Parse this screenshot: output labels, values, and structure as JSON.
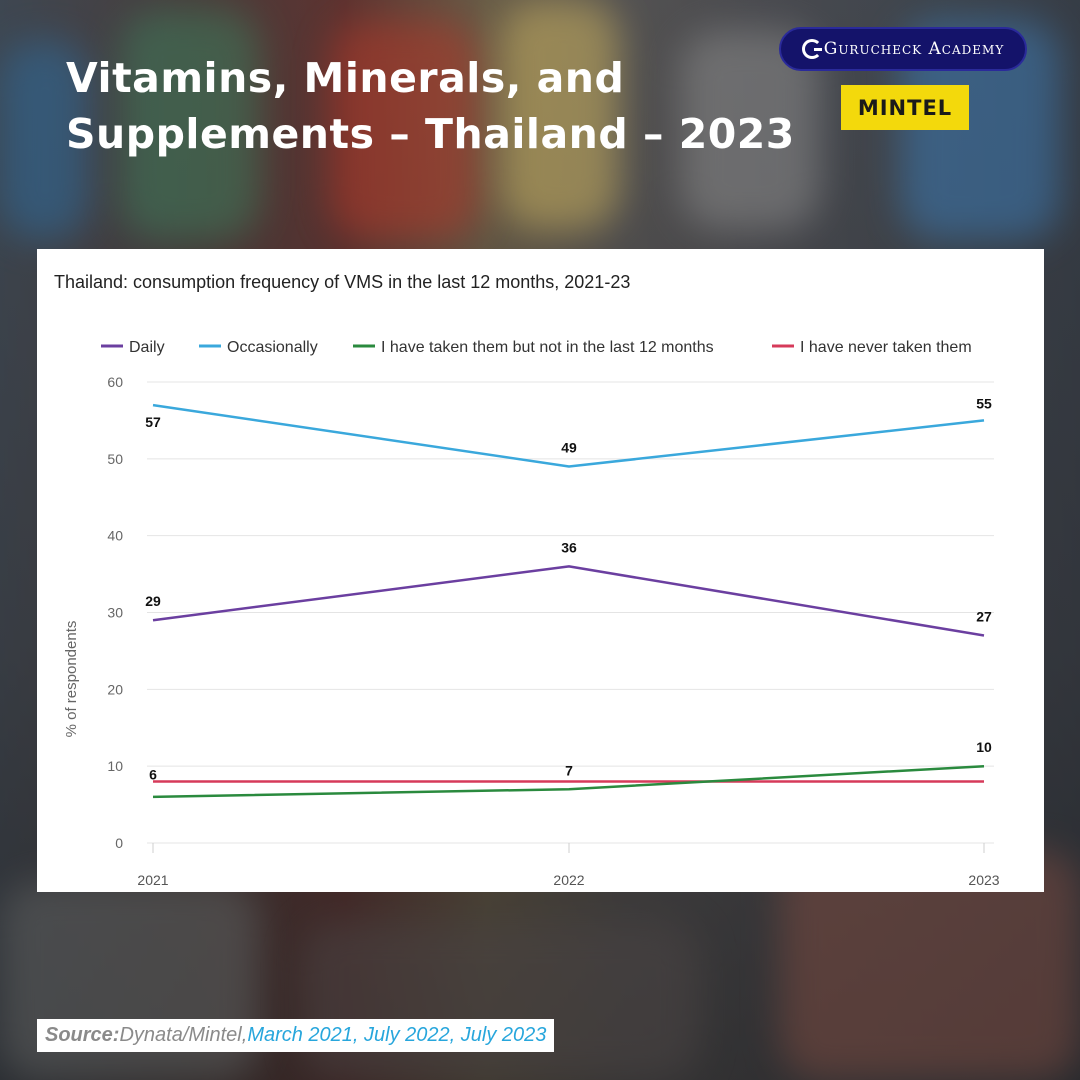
{
  "header": {
    "title_line1": "Vitamins, Minerals, and",
    "title_line2": "Supplements – Thailand – 2023"
  },
  "brand": {
    "academy_label": "Gurucheck Academy",
    "partner_label": "MINTEL"
  },
  "source": {
    "label": "Source:",
    "org": " Dynata/Mintel, ",
    "dates": "March 2021, July 2022, July 2023"
  },
  "chart_data": {
    "type": "line",
    "title": "Thailand: consumption frequency of VMS in the last 12 months, 2021-23",
    "xlabel": "",
    "ylabel": "% of respondents",
    "categories": [
      "2021",
      "2022",
      "2023"
    ],
    "ylim": [
      0,
      60
    ],
    "yticks": [
      0,
      10,
      20,
      30,
      40,
      50,
      60
    ],
    "grid": true,
    "legend_position": "top",
    "series": [
      {
        "name": "Daily",
        "color": "#6b3fa0",
        "values": [
          29,
          36,
          27
        ],
        "labels": [
          "29",
          "36",
          "27"
        ]
      },
      {
        "name": "Occasionally",
        "color": "#3aa8dc",
        "values": [
          57,
          49,
          55
        ],
        "labels": [
          "57",
          "49",
          "55"
        ]
      },
      {
        "name": "I have taken them but not in the last 12 months",
        "color": "#2a8a3e",
        "values": [
          6,
          7,
          10
        ],
        "labels": [
          "6",
          "7",
          "10"
        ]
      },
      {
        "name": "I have never taken them",
        "color": "#d63a5a",
        "values": [
          8,
          8,
          8
        ],
        "labels": [
          "",
          "",
          ""
        ]
      }
    ]
  }
}
